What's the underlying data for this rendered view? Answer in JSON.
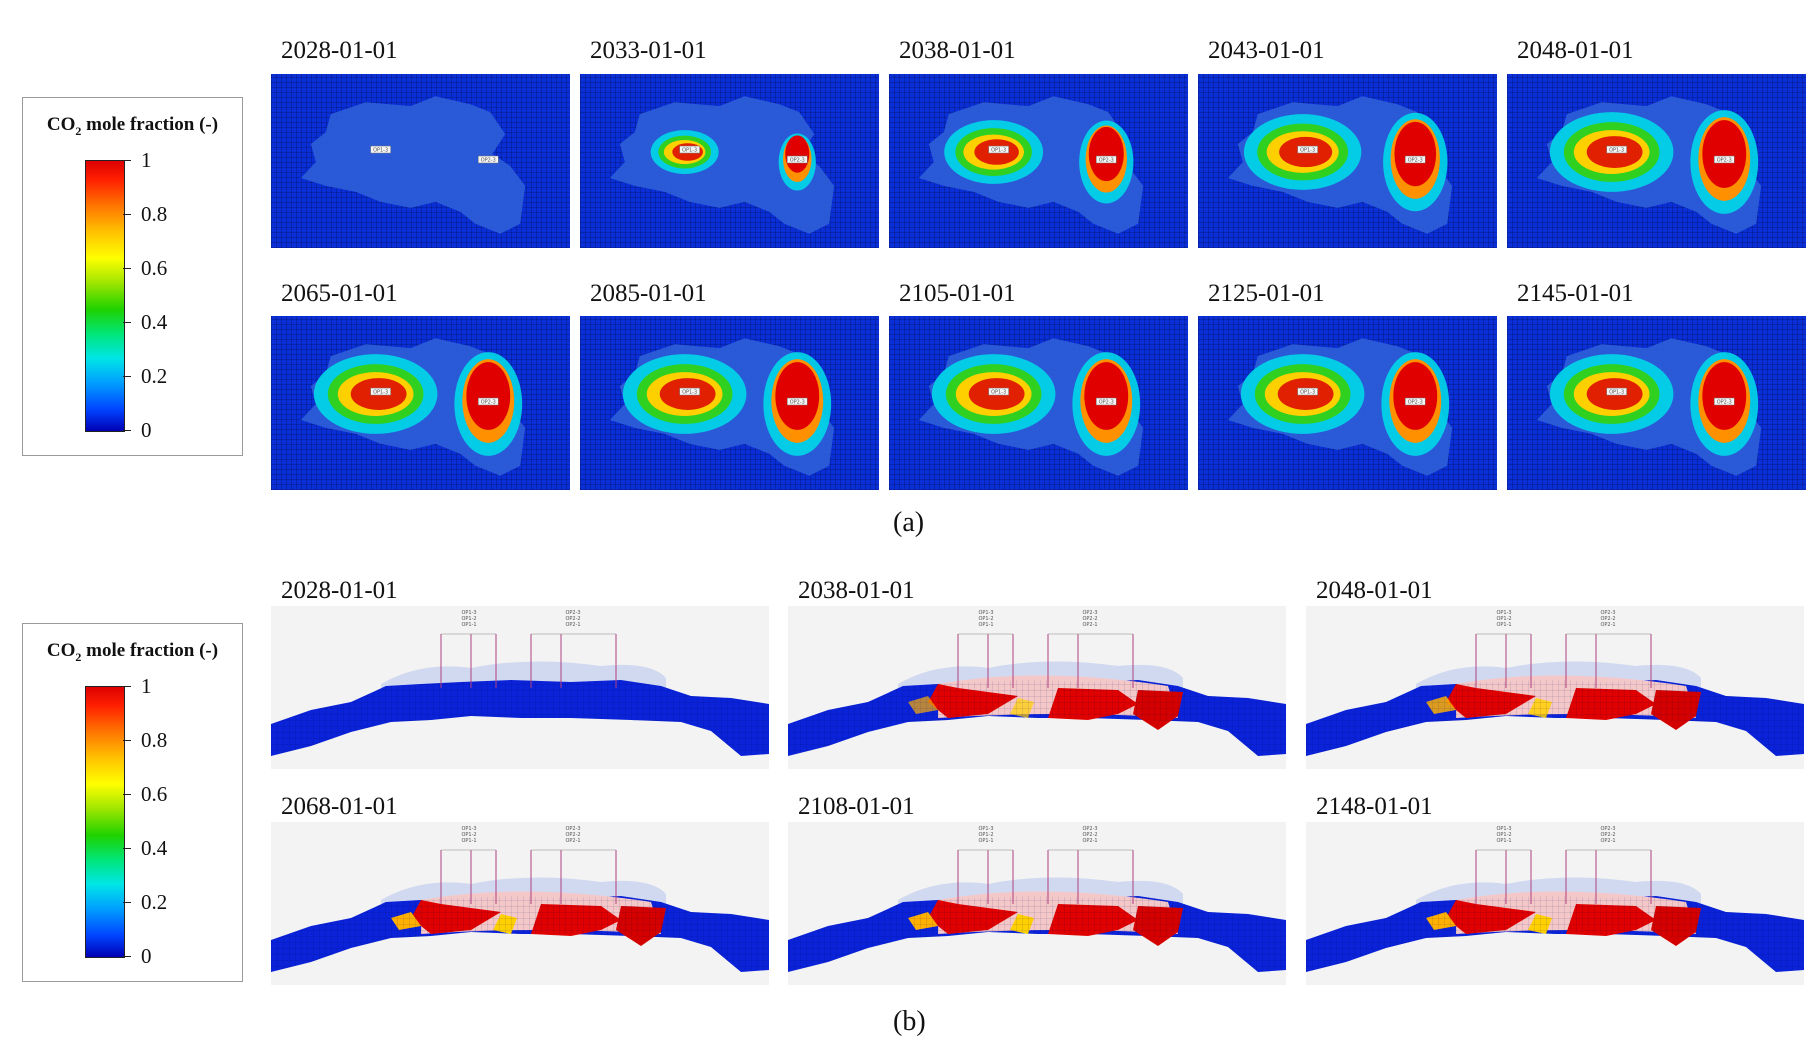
{
  "legend_title_prefix": "CO",
  "legend_title_sub": "2",
  "legend_title_suffix": " mole fraction (-)",
  "colorbar_ticks": [
    "1",
    "0.8",
    "0.6",
    "0.4",
    "0.2",
    "0"
  ],
  "colors": {
    "low": "#0000b4",
    "mid": "#1ed200",
    "high": "#dd0000"
  },
  "panel_a": {
    "caption": "(a)",
    "dates": [
      "2028-01-01",
      "2033-01-01",
      "2038-01-01",
      "2043-01-01",
      "2048-01-01",
      "2065-01-01",
      "2085-01-01",
      "2105-01-01",
      "2125-01-01",
      "2145-01-01"
    ],
    "well_labels": [
      "OP1-3",
      "OP2-3"
    ]
  },
  "panel_b": {
    "caption": "(b)",
    "dates": [
      "2028-01-01",
      "2038-01-01",
      "2048-01-01",
      "2068-01-01",
      "2108-01-01",
      "2148-01-01"
    ],
    "well_labels": [
      "OP1-3",
      "OP1-2",
      "OP1-1",
      "OP2-3",
      "OP2-2",
      "OP2-1"
    ]
  }
}
